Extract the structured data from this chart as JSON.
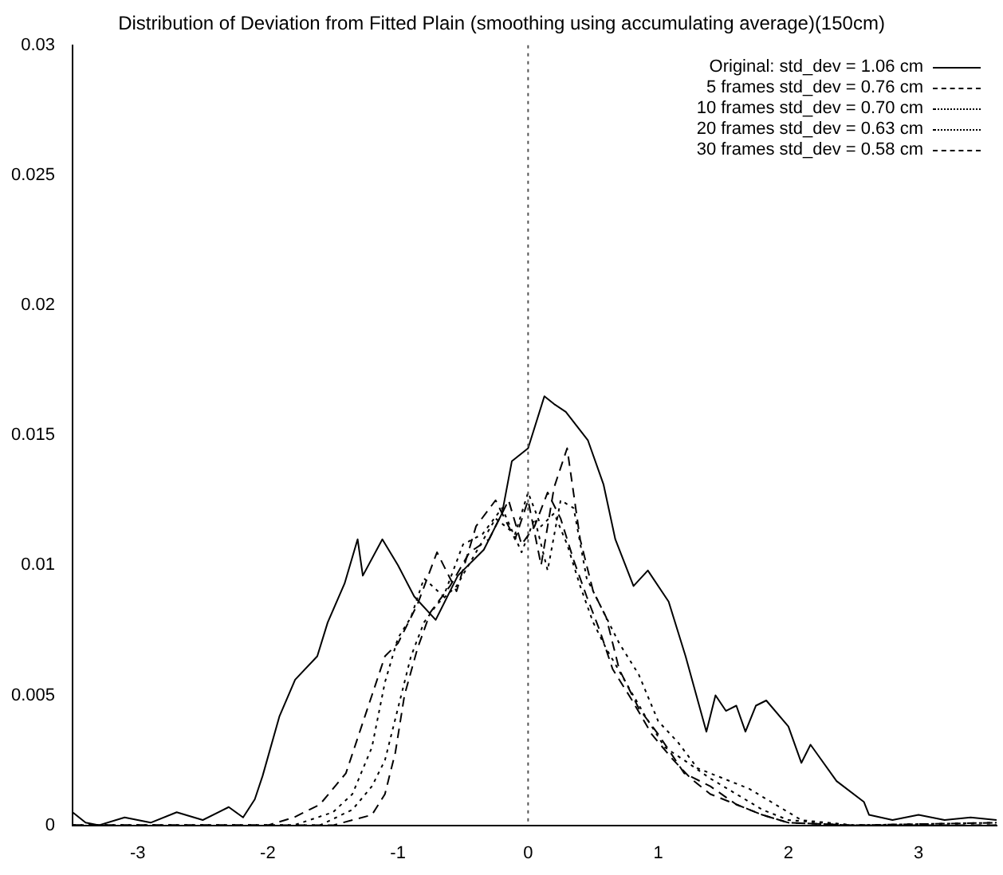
{
  "chart_data": {
    "type": "line",
    "title": "Distribution of Deviation from Fitted Plain (smoothing using accumulating average)(150cm)",
    "xlim": [
      -3.5,
      3.6
    ],
    "xticks": [
      -3,
      -2,
      -1,
      0,
      1,
      2,
      3
    ],
    "ylim": [
      0,
      0.03
    ],
    "yticks": [
      0,
      0.005,
      0.01,
      0.015,
      0.02,
      0.025,
      0.03
    ],
    "grid": false,
    "legend": "top right",
    "marker": "none",
    "ref_lines": [
      {
        "axis": "x",
        "value": 0,
        "color": "#555555",
        "line_style": "dotted"
      }
    ],
    "series": [
      {
        "name": "Original: std_dev =  1.06 cm",
        "color": "#000000",
        "line_style": "solid",
        "x": [
          -3.5,
          -3.4,
          -3.3,
          -3.1,
          -2.9,
          -2.7,
          -2.5,
          -2.3,
          -2.19,
          -2.1,
          -2.04,
          -1.91,
          -1.79,
          -1.62,
          -1.54,
          -1.41,
          -1.31,
          -1.27,
          -1.12,
          -1.0,
          -0.875,
          -0.71,
          -0.54,
          -0.34,
          -0.2,
          -0.125,
          0.0,
          0.125,
          0.2,
          0.29,
          0.46,
          0.58,
          0.67,
          0.81,
          0.92,
          1.08,
          1.21,
          1.37,
          1.44,
          1.52,
          1.6,
          1.67,
          1.75,
          1.83,
          2.0,
          2.1,
          2.17,
          2.37,
          2.58,
          2.62,
          2.8,
          3.0,
          3.2,
          3.4,
          3.6
        ],
        "values": [
          0.0005,
          0.0001,
          0,
          0.0003,
          0.0001,
          0.0005,
          0.0002,
          0.0007,
          0.0003,
          0.001,
          0.0019,
          0.0042,
          0.0056,
          0.0065,
          0.0078,
          0.0093,
          0.011,
          0.0096,
          0.011,
          0.01,
          0.0088,
          0.0079,
          0.0096,
          0.0106,
          0.012,
          0.014,
          0.0145,
          0.0165,
          0.0162,
          0.0159,
          0.0148,
          0.0131,
          0.011,
          0.0092,
          0.0098,
          0.0086,
          0.0065,
          0.0036,
          0.005,
          0.0044,
          0.0046,
          0.0036,
          0.0046,
          0.0048,
          0.0038,
          0.0024,
          0.0031,
          0.0017,
          0.0009,
          0.0004,
          0.0002,
          0.0004,
          0.0002,
          0.0003,
          0.0002
        ]
      },
      {
        "name": "5 frames std_dev = 0.76 cm",
        "color": "#000000",
        "line_style": "dashed",
        "x": [
          -3.5,
          -2.0,
          -1.8,
          -1.6,
          -1.4,
          -1.3,
          -1.2,
          -1.1,
          -1.0,
          -0.85,
          -0.7,
          -0.55,
          -0.4,
          -0.25,
          -0.1,
          0.0,
          0.1,
          0.2,
          0.3,
          0.4,
          0.5,
          0.6,
          0.7,
          0.85,
          1.0,
          1.2,
          1.4,
          1.6,
          1.8,
          2.0,
          2.5,
          3.6
        ],
        "values": [
          0,
          0,
          0.0003,
          0.0008,
          0.002,
          0.0035,
          0.005,
          0.0065,
          0.007,
          0.0085,
          0.0105,
          0.009,
          0.0115,
          0.0125,
          0.011,
          0.0125,
          0.01,
          0.013,
          0.0145,
          0.011,
          0.009,
          0.008,
          0.006,
          0.0045,
          0.0035,
          0.002,
          0.0015,
          0.0008,
          0.0004,
          0.0001,
          0,
          0.0001
        ]
      },
      {
        "name": "10 frames std_dev = 0.70 cm",
        "color": "#000000",
        "line_style": "dotted",
        "x": [
          -3.5,
          -1.8,
          -1.5,
          -1.35,
          -1.2,
          -1.1,
          -1.0,
          -0.9,
          -0.8,
          -0.65,
          -0.5,
          -0.35,
          -0.2,
          -0.05,
          0.05,
          0.15,
          0.25,
          0.35,
          0.45,
          0.55,
          0.7,
          0.85,
          1.0,
          1.15,
          1.3,
          1.5,
          1.7,
          1.9,
          2.1,
          2.5,
          3.6
        ],
        "values": [
          0,
          0,
          0.0005,
          0.0012,
          0.003,
          0.0055,
          0.0072,
          0.008,
          0.0095,
          0.0088,
          0.0108,
          0.0112,
          0.0122,
          0.0105,
          0.0118,
          0.0098,
          0.0125,
          0.0122,
          0.0095,
          0.0085,
          0.007,
          0.0058,
          0.004,
          0.0032,
          0.0022,
          0.0018,
          0.0014,
          0.0008,
          0.0002,
          0,
          0.0001
        ]
      },
      {
        "name": "20 frames std_dev = 0.63 cm",
        "color": "#000000",
        "line_style": "dotted",
        "x": [
          -3.5,
          -1.6,
          -1.35,
          -1.2,
          -1.1,
          -1.0,
          -0.9,
          -0.8,
          -0.7,
          -0.55,
          -0.4,
          -0.25,
          -0.1,
          0.0,
          0.1,
          0.2,
          0.3,
          0.4,
          0.5,
          0.6,
          0.75,
          0.9,
          1.05,
          1.2,
          1.4,
          1.6,
          1.8,
          2.0,
          2.5,
          3.6
        ],
        "values": [
          0,
          0,
          0.0006,
          0.0015,
          0.0025,
          0.0045,
          0.0065,
          0.0078,
          0.0085,
          0.0092,
          0.0105,
          0.0118,
          0.0112,
          0.0128,
          0.0115,
          0.012,
          0.0108,
          0.0092,
          0.0078,
          0.0068,
          0.0055,
          0.0042,
          0.003,
          0.0025,
          0.0018,
          0.0012,
          0.0006,
          0.0002,
          0,
          0
        ]
      },
      {
        "name": "30 frames std_dev = 0.58 cm",
        "color": "#000000",
        "line_style": "dashed",
        "x": [
          -3.5,
          -1.5,
          -1.2,
          -1.1,
          -1.02,
          -0.95,
          -0.85,
          -0.75,
          -0.6,
          -0.45,
          -0.3,
          -0.15,
          -0.05,
          0.05,
          0.15,
          0.25,
          0.35,
          0.45,
          0.55,
          0.65,
          0.8,
          0.95,
          1.1,
          1.25,
          1.4,
          1.6,
          1.8,
          2.0,
          2.5,
          3.6
        ],
        "values": [
          0,
          0,
          0.0004,
          0.0012,
          0.0028,
          0.005,
          0.0068,
          0.0082,
          0.0092,
          0.0105,
          0.011,
          0.0125,
          0.0108,
          0.0115,
          0.0128,
          0.0118,
          0.0102,
          0.0088,
          0.0075,
          0.006,
          0.0048,
          0.0035,
          0.0026,
          0.0018,
          0.0012,
          0.0008,
          0.0004,
          0.0001,
          0,
          0
        ]
      }
    ]
  }
}
